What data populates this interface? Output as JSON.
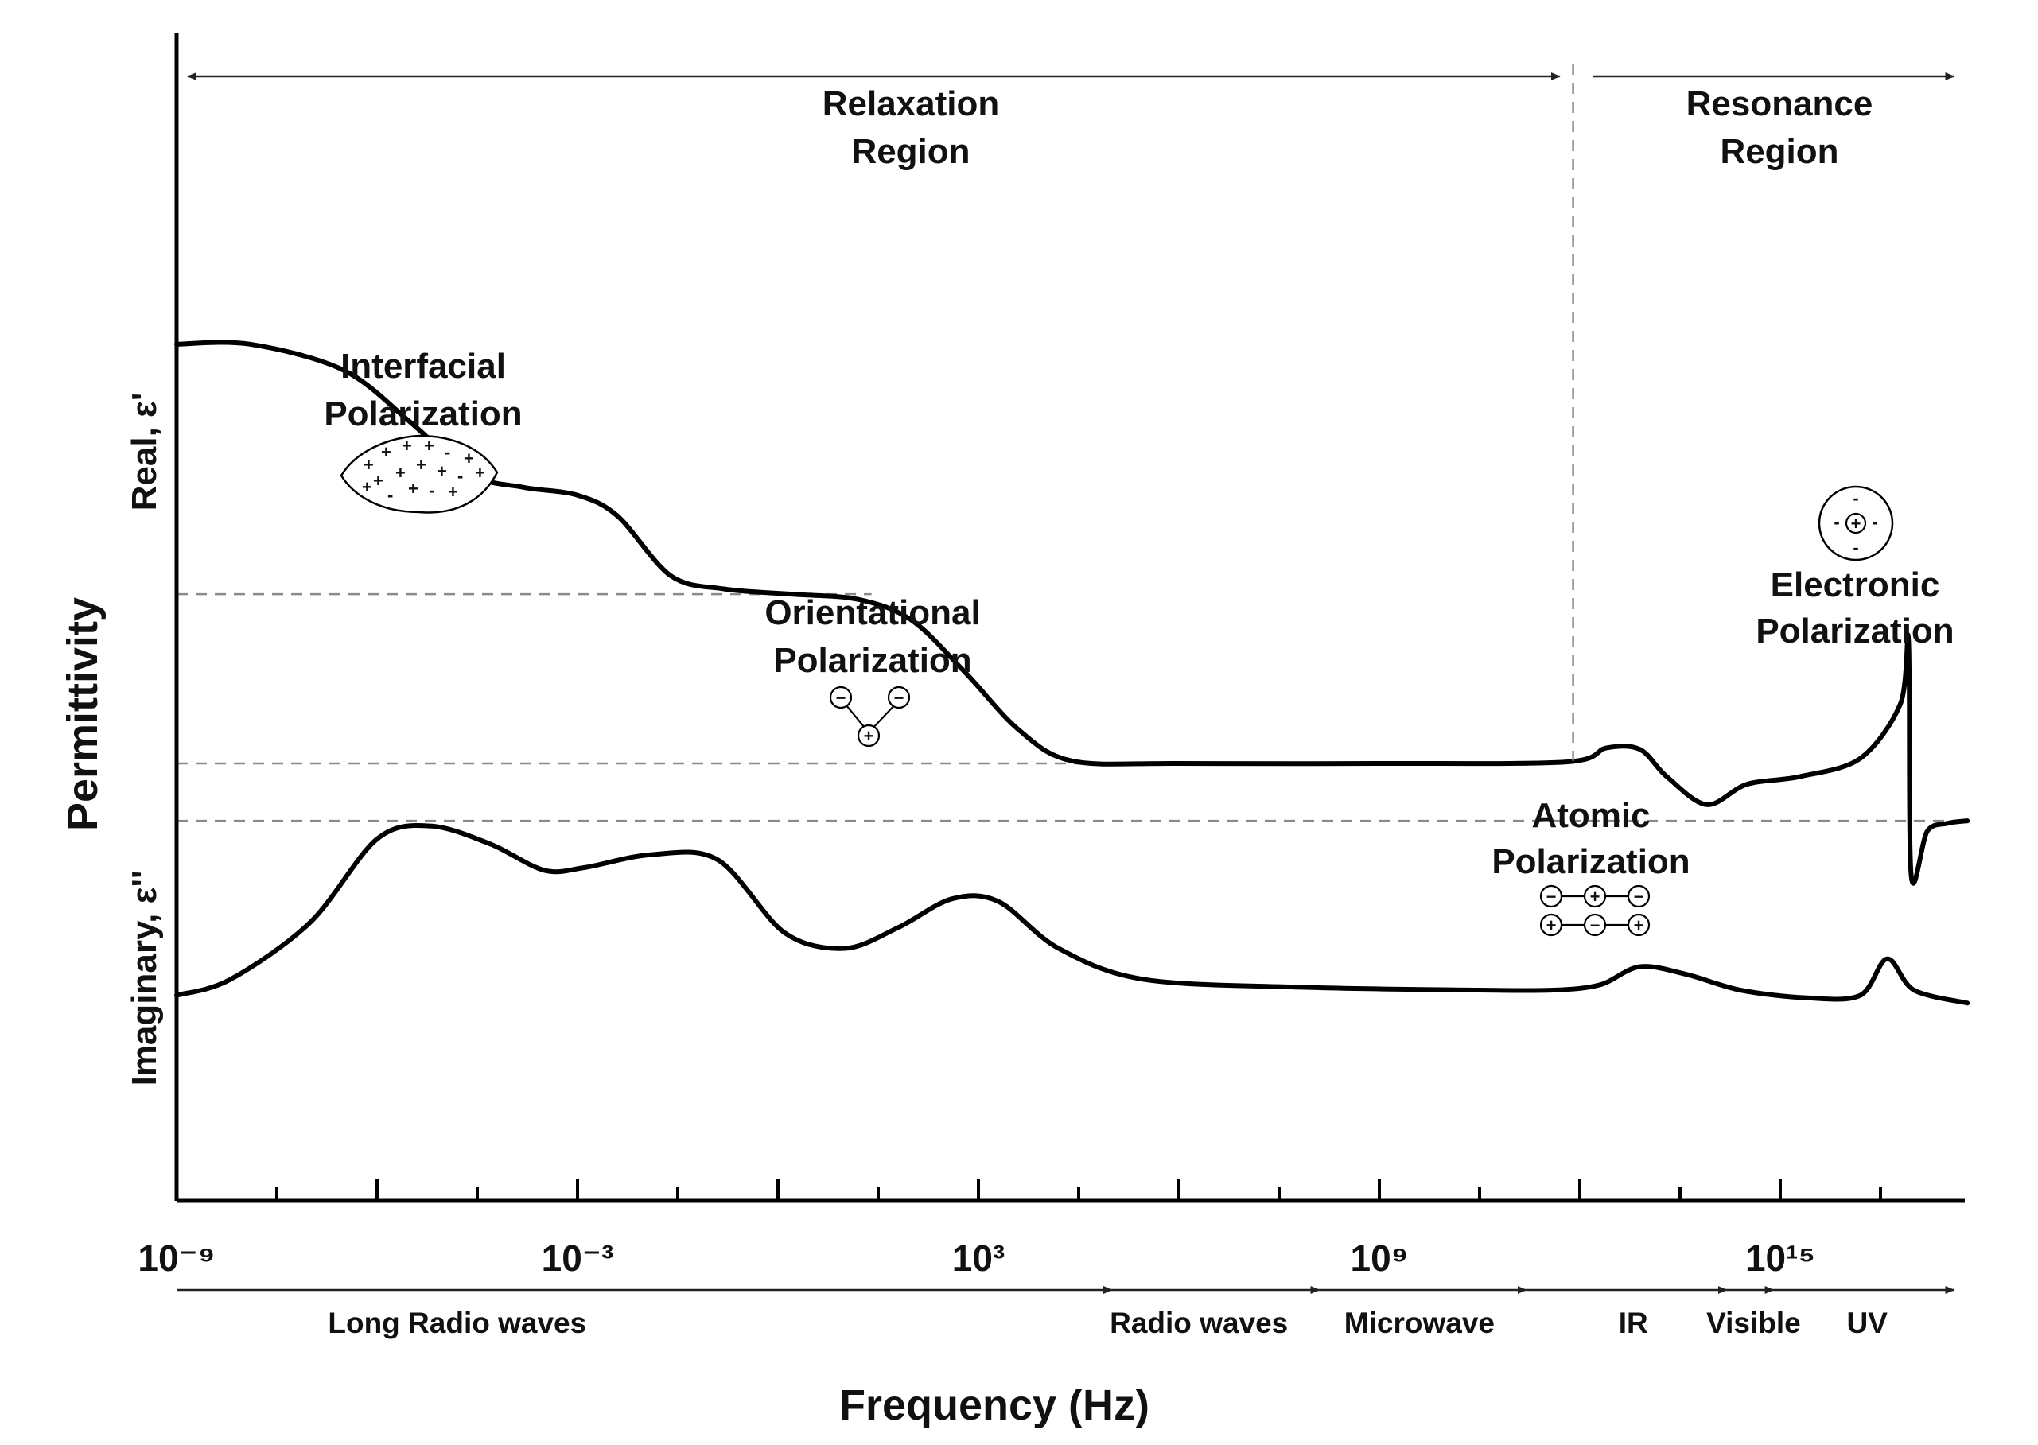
{
  "chart_data": {
    "type": "line",
    "x_scale": "log",
    "xlabel": "Frequency (Hz)",
    "ylabel": "Permittivity",
    "upper_panel_label": "Real, ε'",
    "lower_panel_label": "Imaginary, ε''",
    "xlim_log10": [
      -9,
      17.8
    ],
    "x_tick_labels": [
      {
        "exp": -9,
        "label": "10⁻⁹"
      },
      {
        "exp": -3,
        "label": "10⁻³"
      },
      {
        "exp": 3,
        "label": "10³"
      },
      {
        "exp": 9,
        "label": "10⁹"
      },
      {
        "exp": 15,
        "label": "10¹⁵"
      }
    ],
    "minor_tick_exps": [
      -9,
      -6,
      -3,
      0,
      3,
      6,
      9,
      12,
      15,
      -7.5,
      -4.5,
      -1.5,
      1.5,
      4.5,
      7.5,
      10.5,
      13.5,
      16.5
    ],
    "regions": [
      {
        "label_lines": [
          "Relaxation",
          "Region"
        ],
        "from_exp": -9,
        "to_exp": 11.7
      },
      {
        "label_lines": [
          "Resonance",
          "Region"
        ],
        "from_exp": 12.2,
        "to_exp": 17.6
      }
    ],
    "region_divider_exp": 11.9,
    "bands": [
      {
        "label": "Long Radio waves",
        "from_exp": -9,
        "to_exp": 5.0,
        "label_exp": -4.8
      },
      {
        "label": "Radio waves",
        "from_exp": 5.0,
        "to_exp": 8.1,
        "label_exp": 6.3
      },
      {
        "label": "Microwave",
        "from_exp": 8.1,
        "to_exp": 11.2,
        "label_exp": 9.6
      },
      {
        "label": "IR",
        "from_exp": 11.2,
        "to_exp": 14.2,
        "label_exp": 12.8
      },
      {
        "label": "Visible",
        "from_exp": 14.2,
        "to_exp": 14.9,
        "label_exp": 14.6
      },
      {
        "label": "UV",
        "from_exp": 14.9,
        "to_exp": 17.6,
        "label_exp": 16.3
      }
    ],
    "mechanisms": [
      {
        "label_lines": [
          "Interfacial",
          "Polarization"
        ],
        "icon": "charged-particle-icon"
      },
      {
        "label_lines": [
          "Orientational",
          "Polarization"
        ],
        "icon": "dipole-molecule-icon"
      },
      {
        "label_lines": [
          "Atomic",
          "Polarization"
        ],
        "icon": "ion-lattice-icon"
      },
      {
        "label_lines": [
          "Electronic",
          "Polarization"
        ],
        "icon": "atom-cloud-icon"
      }
    ],
    "series": [
      {
        "key": "real",
        "points": [
          [
            -9,
            9.5
          ],
          [
            -7.9,
            9.5
          ],
          [
            -6.5,
            9.0
          ],
          [
            -5.5,
            8.0
          ],
          [
            -4.6,
            7.0
          ],
          [
            -3.8,
            6.75
          ],
          [
            -3.0,
            6.6
          ],
          [
            -2.4,
            6.2
          ],
          [
            -1.6,
            5.05
          ],
          [
            -0.8,
            4.8
          ],
          [
            0.2,
            4.7
          ],
          [
            1.2,
            4.6
          ],
          [
            2.0,
            4.2
          ],
          [
            2.8,
            3.2
          ],
          [
            3.6,
            2.1
          ],
          [
            4.4,
            1.5
          ],
          [
            6.0,
            1.45
          ],
          [
            9.0,
            1.45
          ],
          [
            11.8,
            1.48
          ],
          [
            12.4,
            1.75
          ],
          [
            12.9,
            1.72
          ],
          [
            13.3,
            1.2
          ],
          [
            13.9,
            0.66
          ],
          [
            14.5,
            1.05
          ],
          [
            15.3,
            1.2
          ],
          [
            16.2,
            1.55
          ],
          [
            16.8,
            2.6
          ],
          [
            16.92,
            3.8
          ],
          [
            16.96,
            -0.7
          ],
          [
            17.2,
            0.15
          ],
          [
            17.5,
            0.3
          ],
          [
            17.8,
            0.35
          ]
        ]
      },
      {
        "key": "imaginary",
        "points": [
          [
            -9,
            -3.0
          ],
          [
            -8.2,
            -2.7
          ],
          [
            -7.0,
            -1.6
          ],
          [
            -6.0,
            0.0
          ],
          [
            -5.2,
            0.25
          ],
          [
            -4.3,
            -0.1
          ],
          [
            -3.5,
            -0.6
          ],
          [
            -2.9,
            -0.55
          ],
          [
            -1.9,
            -0.3
          ],
          [
            -0.9,
            -0.4
          ],
          [
            0.1,
            -1.8
          ],
          [
            1.0,
            -2.1
          ],
          [
            1.8,
            -1.7
          ],
          [
            2.6,
            -1.15
          ],
          [
            3.3,
            -1.2
          ],
          [
            4.2,
            -2.1
          ],
          [
            5.5,
            -2.7
          ],
          [
            8.0,
            -2.85
          ],
          [
            10.5,
            -2.9
          ],
          [
            11.6,
            -2.9
          ],
          [
            12.3,
            -2.8
          ],
          [
            12.9,
            -2.45
          ],
          [
            13.6,
            -2.6
          ],
          [
            14.4,
            -2.9
          ],
          [
            15.4,
            -3.05
          ],
          [
            16.2,
            -3.0
          ],
          [
            16.6,
            -2.3
          ],
          [
            17.0,
            -2.9
          ],
          [
            17.8,
            -3.15
          ]
        ]
      }
    ],
    "guides": [
      {
        "kind": "dashed-horizontal",
        "y": 4.7,
        "from_exp": -9,
        "to_exp": 1.4
      },
      {
        "kind": "dashed-horizontal",
        "y": 1.45,
        "from_exp": -9,
        "to_exp": 5.0
      },
      {
        "kind": "dashed-horizontal",
        "y": 0.35,
        "from_exp": -9,
        "to_exp": 17.8
      }
    ]
  }
}
